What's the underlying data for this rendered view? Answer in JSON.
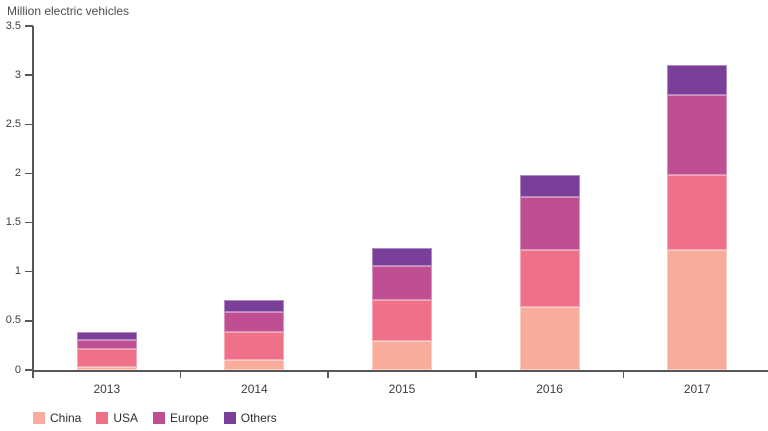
{
  "title": "Million electric vehicles",
  "chart_data": {
    "type": "bar",
    "stacked": true,
    "title": "Million electric vehicles",
    "xlabel": "",
    "ylabel": "Million electric vehicles",
    "categories": [
      "2013",
      "2014",
      "2015",
      "2016",
      "2017"
    ],
    "series": [
      {
        "name": "China",
        "color": "#F8AC9B",
        "values": [
          0.03,
          0.1,
          0.3,
          0.64,
          1.22
        ]
      },
      {
        "name": "USA",
        "color": "#EF7189",
        "values": [
          0.18,
          0.29,
          0.41,
          0.58,
          0.76
        ]
      },
      {
        "name": "Europe",
        "color": "#C04E93",
        "values": [
          0.1,
          0.2,
          0.35,
          0.54,
          0.82
        ]
      },
      {
        "name": "Others",
        "color": "#7A3F98",
        "values": [
          0.08,
          0.12,
          0.18,
          0.22,
          0.3
        ]
      }
    ],
    "totals": [
      0.39,
      0.71,
      1.24,
      1.98,
      3.1
    ],
    "ylim": [
      0,
      3.5
    ],
    "y_ticks": [
      "0",
      "0.5",
      "1",
      "1.5",
      "2",
      "2.5",
      "3",
      "3.5"
    ],
    "grid": false,
    "legend_position": "bottom-left"
  },
  "colors": {
    "axis": "#57575a",
    "tick_text": "#3d3d3d",
    "legend_text": "#2e2e2e"
  }
}
